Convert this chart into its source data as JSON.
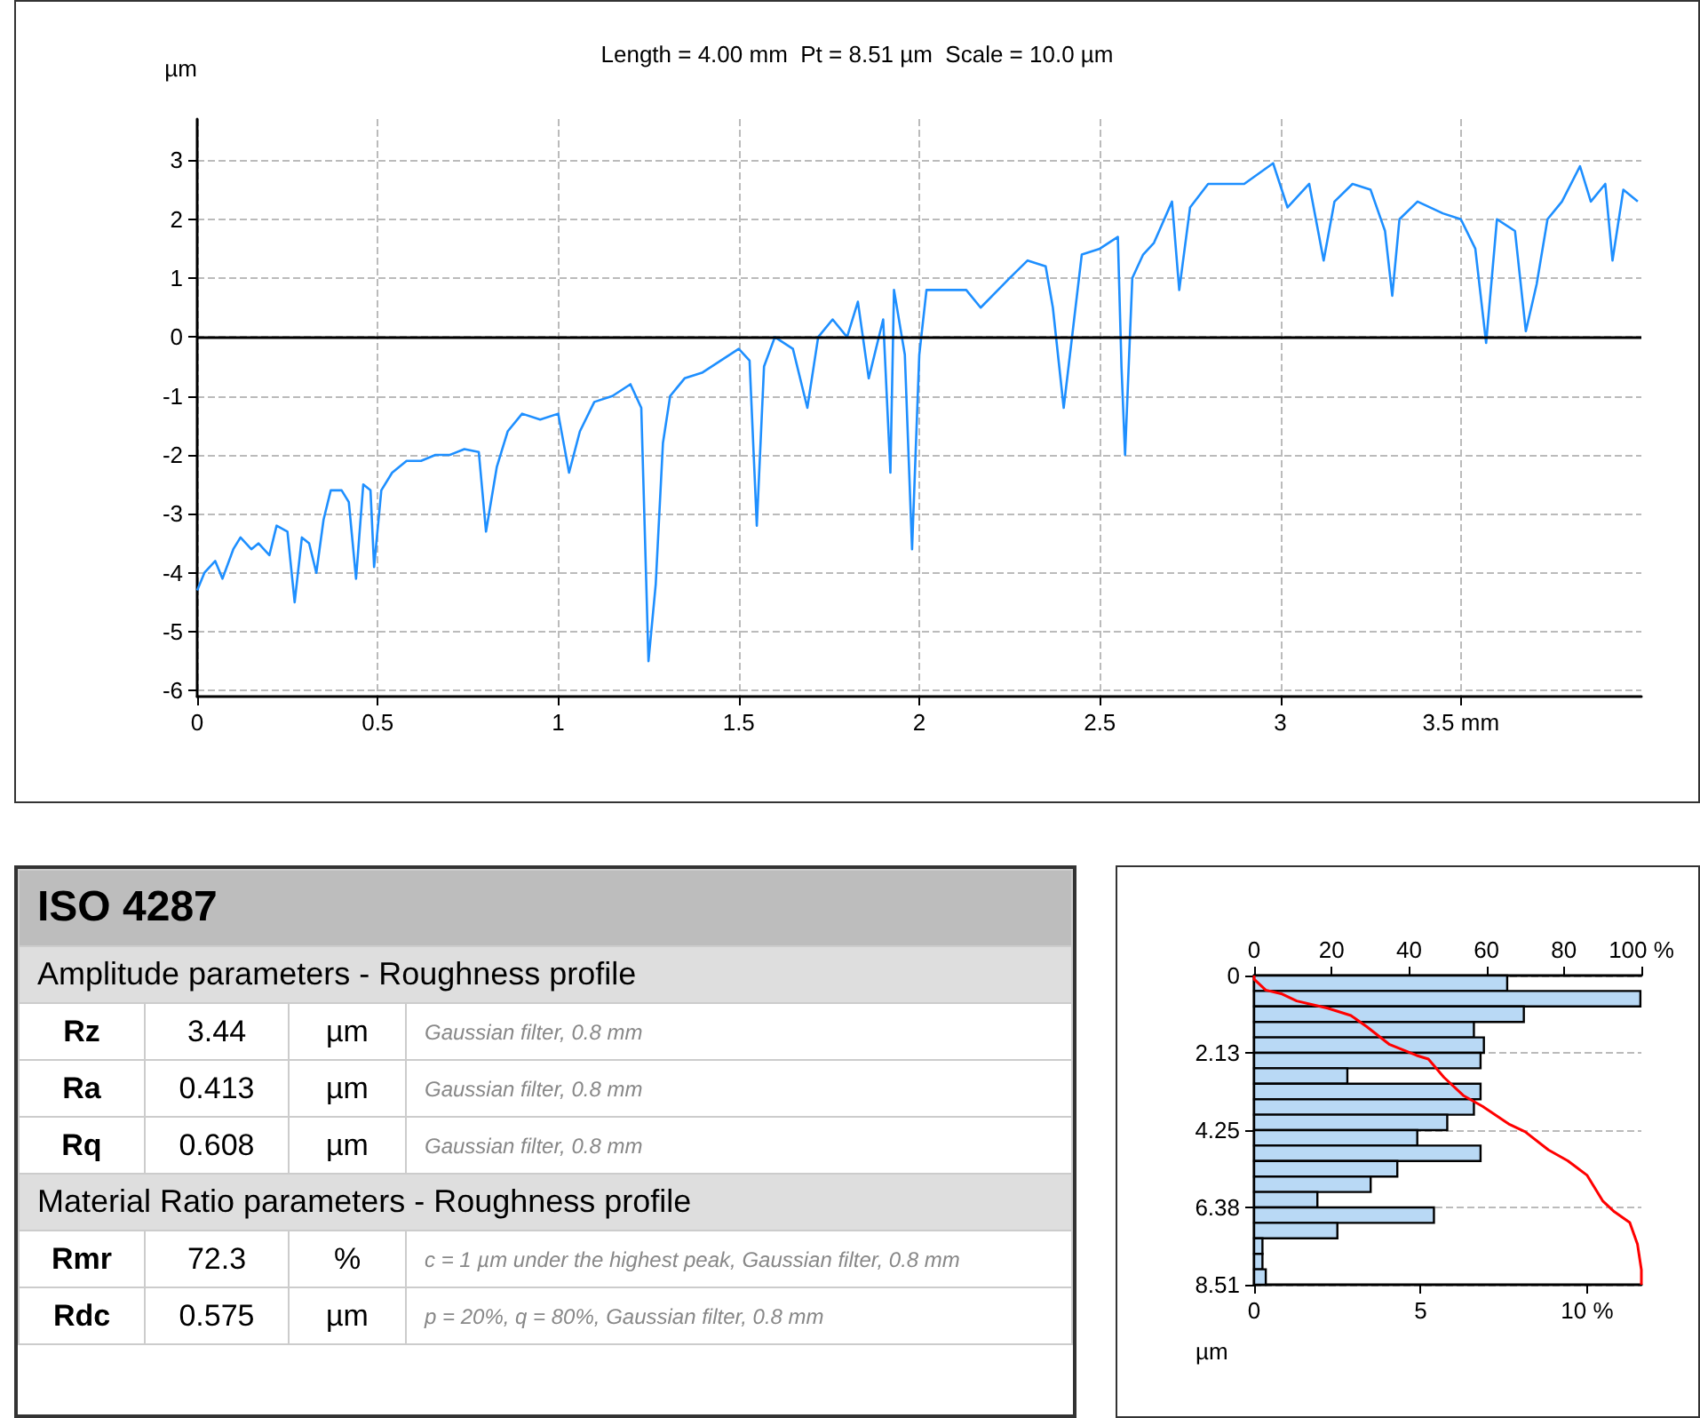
{
  "chart_data": [
    {
      "type": "line",
      "title": "Length = 4.00 mm  Pt = 8.51 µm  Scale = 10.0 µm",
      "ylabel": "µm",
      "color": "#1e8fff",
      "marker": "none",
      "grid": true,
      "legend": false,
      "xlim": [
        0,
        4
      ],
      "xticks": [
        0,
        0.5,
        1,
        1.5,
        2,
        2.5,
        3,
        {
          "value": 3.5,
          "label": "3.5 mm"
        }
      ],
      "ylim": [
        -6.1,
        3.7
      ],
      "yticks": [
        -6,
        -5,
        -4,
        -3,
        -2,
        -1,
        0,
        1,
        2,
        3
      ],
      "ref_lines": [
        {
          "axis": "y",
          "value": 0,
          "color": "#000000"
        }
      ],
      "x": [
        0,
        0.02,
        0.05,
        0.07,
        0.1,
        0.12,
        0.15,
        0.17,
        0.2,
        0.22,
        0.25,
        0.27,
        0.29,
        0.31,
        0.33,
        0.35,
        0.37,
        0.4,
        0.42,
        0.44,
        0.46,
        0.48,
        0.49,
        0.51,
        0.54,
        0.58,
        0.62,
        0.66,
        0.7,
        0.74,
        0.78,
        0.8,
        0.83,
        0.86,
        0.9,
        0.95,
        1.0,
        1.03,
        1.06,
        1.1,
        1.15,
        1.2,
        1.23,
        1.25,
        1.27,
        1.29,
        1.31,
        1.35,
        1.4,
        1.45,
        1.5,
        1.53,
        1.55,
        1.57,
        1.6,
        1.65,
        1.69,
        1.72,
        1.76,
        1.8,
        1.83,
        1.86,
        1.9,
        1.92,
        1.93,
        1.96,
        1.98,
        2.0,
        2.02,
        2.13,
        2.17,
        2.25,
        2.3,
        2.35,
        2.37,
        2.4,
        2.45,
        2.5,
        2.55,
        2.56,
        2.57,
        2.59,
        2.62,
        2.65,
        2.7,
        2.72,
        2.75,
        2.8,
        2.9,
        2.98,
        3.02,
        3.08,
        3.12,
        3.15,
        3.2,
        3.25,
        3.29,
        3.31,
        3.33,
        3.38,
        3.45,
        3.5,
        3.54,
        3.57,
        3.6,
        3.65,
        3.68,
        3.71,
        3.74,
        3.78,
        3.83,
        3.86,
        3.9,
        3.92,
        3.95,
        3.99
      ],
      "values": [
        -4.3,
        -4.0,
        -3.8,
        -4.1,
        -3.6,
        -3.4,
        -3.6,
        -3.5,
        -3.7,
        -3.2,
        -3.3,
        -4.5,
        -3.4,
        -3.5,
        -4.0,
        -3.1,
        -2.6,
        -2.6,
        -2.8,
        -4.1,
        -2.5,
        -2.6,
        -3.9,
        -2.6,
        -2.3,
        -2.1,
        -2.1,
        -2.0,
        -2.0,
        -1.9,
        -1.95,
        -3.3,
        -2.2,
        -1.6,
        -1.3,
        -1.4,
        -1.3,
        -2.3,
        -1.6,
        -1.1,
        -1.0,
        -0.8,
        -1.2,
        -5.5,
        -4.2,
        -1.8,
        -1.0,
        -0.7,
        -0.6,
        -0.4,
        -0.2,
        -0.4,
        -3.2,
        -0.5,
        0.0,
        -0.2,
        -1.2,
        0.0,
        0.3,
        0.0,
        0.6,
        -0.7,
        0.3,
        -2.3,
        0.8,
        -0.3,
        -3.6,
        -0.3,
        0.8,
        0.8,
        0.5,
        1.0,
        1.3,
        1.2,
        0.5,
        -1.2,
        1.4,
        1.5,
        1.7,
        -0.5,
        -2.0,
        1.0,
        1.4,
        1.6,
        2.3,
        0.8,
        2.2,
        2.6,
        2.6,
        2.95,
        2.2,
        2.6,
        1.3,
        2.3,
        2.6,
        2.5,
        1.8,
        0.7,
        2.0,
        2.3,
        2.1,
        2.0,
        1.5,
        -0.1,
        2.0,
        1.8,
        0.1,
        0.9,
        2.0,
        2.3,
        2.9,
        2.3,
        2.6,
        1.3,
        2.5,
        2.3
      ]
    },
    {
      "type": "other",
      "title": "ISO 4287",
      "annotations": [
        "Amplitude parameters - Roughness profile",
        "Rz",
        "3.44",
        "µm",
        "Gaussian filter, 0.8 mm",
        "Ra",
        "0.413",
        "µm",
        "Gaussian filter, 0.8 mm",
        "Rq",
        "0.608",
        "µm",
        "Gaussian filter, 0.8 mm",
        "Material Ratio parameters - Roughness profile",
        "Rmr",
        "72.3",
        "%",
        "c = 1 µm under the highest peak, Gaussian filter, 0.8 mm",
        "Rdc",
        "0.575",
        "µm",
        "p = 20%, q = 80%, Gaussian filter, 0.8 mm"
      ]
    },
    {
      "type": "histogram",
      "orientation": "horizontal",
      "ylabel": "µm",
      "color": "#b9d9f5",
      "grid": "y",
      "legend": false,
      "bins": [
        0,
        0.426,
        0.851,
        1.277,
        1.702,
        2.128,
        2.553,
        2.979,
        3.404,
        3.83,
        4.255,
        4.681,
        5.106,
        5.532,
        5.957,
        6.383,
        6.808,
        7.234,
        7.659,
        8.085,
        8.51
      ],
      "values": [
        7.6,
        11.6,
        8.1,
        6.6,
        6.9,
        6.8,
        2.8,
        6.8,
        6.6,
        5.8,
        4.9,
        6.8,
        4.3,
        3.5,
        1.9,
        5.4,
        2.5,
        0.25,
        0.25,
        0.35
      ],
      "xlim": [
        0,
        11.63
      ],
      "xticks": [
        0,
        5,
        {
          "value": 10,
          "label": "10 %"
        }
      ],
      "x2lim": [
        0,
        100
      ],
      "x2ticks": [
        0,
        20,
        40,
        60,
        80,
        {
          "value": 100,
          "label": "100 %"
        }
      ],
      "ylim": [
        8.51,
        0
      ],
      "yticks": [
        0,
        2.13,
        4.25,
        6.38,
        8.51
      ],
      "series": [
        {
          "type": "line",
          "axis": "x2",
          "color": "#ff0000",
          "values": [
            0,
            0,
            3,
            7,
            11,
            19,
            25,
            29,
            35,
            42,
            45,
            49,
            54,
            59,
            66,
            70,
            76,
            81,
            86,
            90,
            93,
            97,
            99,
            100,
            100
          ],
          "x": [
            0,
            0.1,
            0.4,
            0.5,
            0.7,
            0.9,
            1.1,
            1.4,
            1.9,
            2.2,
            2.3,
            2.8,
            3.3,
            3.6,
            4.1,
            4.3,
            4.8,
            5.1,
            5.5,
            6.2,
            6.5,
            6.8,
            7.4,
            8.1,
            8.51
          ]
        }
      ]
    }
  ]
}
